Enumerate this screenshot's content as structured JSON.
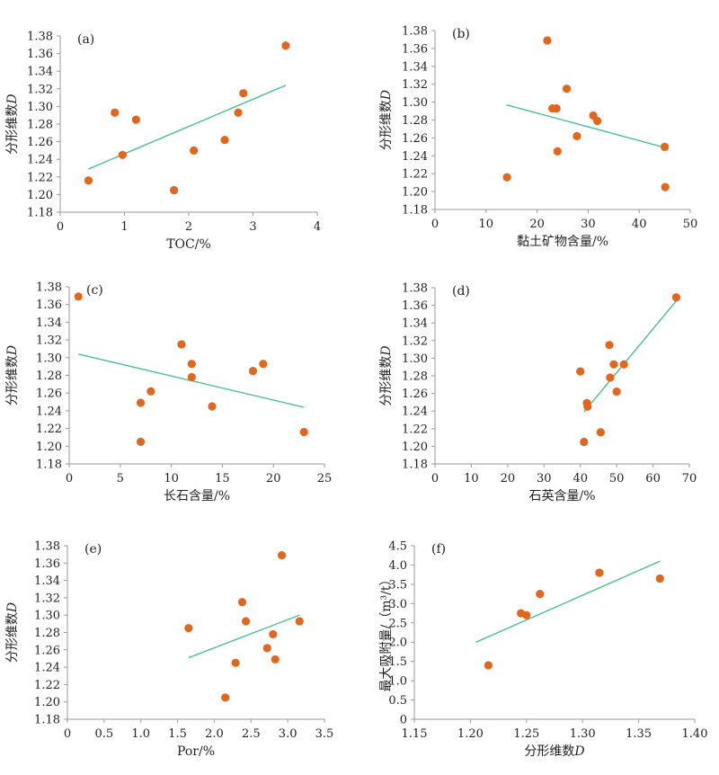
{
  "colors": {
    "point": "#E2661B",
    "trendline": "#3DBE8A",
    "axis": "#9A9A9A",
    "text": "#222222"
  },
  "chart_data": [
    {
      "type": "scatter",
      "panel": "(a)",
      "xlabel": "TOC/%",
      "ylabel": "分形维数D",
      "xlim": [
        0,
        4
      ],
      "ylim": [
        1.18,
        1.38
      ],
      "xticks": [
        "0",
        "1",
        "2",
        "3",
        "4"
      ],
      "yticks": [
        "1.18",
        "1.20",
        "1.22",
        "1.24",
        "1.26",
        "1.28",
        "1.30",
        "1.32",
        "1.34",
        "1.36",
        "1.38"
      ],
      "x": [
        0.44,
        0.85,
        0.97,
        1.18,
        1.77,
        2.08,
        2.56,
        2.77,
        2.85,
        3.51
      ],
      "y": [
        1.216,
        1.293,
        1.245,
        1.285,
        1.205,
        1.25,
        1.262,
        1.293,
        1.315,
        1.369
      ],
      "trendline": {
        "x": [
          0.44,
          3.51
        ],
        "y": [
          1.229,
          1.324
        ]
      }
    },
    {
      "type": "scatter",
      "panel": "(b)",
      "xlabel": "黏土矿物含量/%",
      "ylabel": "分形维数D",
      "xlim": [
        0,
        50
      ],
      "ylim": [
        1.18,
        1.38
      ],
      "xticks": [
        "0",
        "10",
        "20",
        "30",
        "40",
        "50"
      ],
      "yticks": [
        "1.18",
        "1.20",
        "1.22",
        "1.24",
        "1.26",
        "1.28",
        "1.30",
        "1.32",
        "1.34",
        "1.36",
        "1.38"
      ],
      "x": [
        14.1,
        22.0,
        23.0,
        23.8,
        24.0,
        25.8,
        27.8,
        31.0,
        31.8,
        45.0,
        45.1
      ],
      "y": [
        1.216,
        1.369,
        1.293,
        1.293,
        1.245,
        1.315,
        1.262,
        1.285,
        1.279,
        1.25,
        1.205
      ],
      "trendline": {
        "x": [
          14,
          45.2
        ],
        "y": [
          1.297,
          1.249
        ]
      }
    },
    {
      "type": "scatter",
      "panel": "(c)",
      "xlabel": "长石含量/%",
      "ylabel": "分形维数D",
      "xlim": [
        0,
        25
      ],
      "ylim": [
        1.18,
        1.38
      ],
      "xticks": [
        "0",
        "5",
        "10",
        "15",
        "20",
        "25"
      ],
      "yticks": [
        "1.18",
        "1.20",
        "1.22",
        "1.24",
        "1.26",
        "1.28",
        "1.30",
        "1.32",
        "1.34",
        "1.36",
        "1.38"
      ],
      "x": [
        0.9,
        7.0,
        7.0,
        8.0,
        11.0,
        12.0,
        12.0,
        14.0,
        18.0,
        19.0,
        23.0
      ],
      "y": [
        1.369,
        1.249,
        1.205,
        1.262,
        1.315,
        1.293,
        1.278,
        1.245,
        1.285,
        1.293,
        1.216
      ],
      "trendline": {
        "x": [
          0.9,
          23.0
        ],
        "y": [
          1.304,
          1.244
        ]
      }
    },
    {
      "type": "scatter",
      "panel": "(d)",
      "xlabel": "石英含量/%",
      "ylabel": "分形维数D",
      "xlim": [
        0,
        70
      ],
      "ylim": [
        1.18,
        1.38
      ],
      "xticks": [
        "0",
        "10",
        "20",
        "30",
        "40",
        "50",
        "60",
        "70"
      ],
      "yticks": [
        "1.18",
        "1.20",
        "1.22",
        "1.24",
        "1.26",
        "1.28",
        "1.30",
        "1.32",
        "1.34",
        "1.36",
        "1.38"
      ],
      "x": [
        40.0,
        41.0,
        41.8,
        42.0,
        45.6,
        48.0,
        48.2,
        49.2,
        50.0,
        52.0,
        66.4
      ],
      "y": [
        1.285,
        1.205,
        1.249,
        1.245,
        1.216,
        1.315,
        1.278,
        1.293,
        1.262,
        1.293,
        1.369
      ],
      "trendline": {
        "x": [
          41.0,
          66.4
        ],
        "y": [
          1.239,
          1.365
        ]
      }
    },
    {
      "type": "scatter",
      "panel": "(e)",
      "xlabel": "Por/%",
      "ylabel": "分形维数D",
      "xlim": [
        0,
        3.5
      ],
      "ylim": [
        1.18,
        1.38
      ],
      "xticks": [
        "0",
        "0.5",
        "1.0",
        "1.5",
        "2.0",
        "2.5",
        "3.0",
        "3.5"
      ],
      "yticks": [
        "1.18",
        "1.20",
        "1.22",
        "1.24",
        "1.26",
        "1.28",
        "1.30",
        "1.32",
        "1.34",
        "1.36",
        "1.38"
      ],
      "x": [
        1.65,
        2.15,
        2.29,
        2.38,
        2.43,
        2.72,
        2.8,
        2.83,
        2.92,
        3.16
      ],
      "y": [
        1.285,
        1.205,
        1.245,
        1.315,
        1.293,
        1.262,
        1.278,
        1.249,
        1.369,
        1.293
      ],
      "trendline": {
        "x": [
          1.65,
          3.16
        ],
        "y": [
          1.251,
          1.3
        ]
      }
    },
    {
      "type": "scatter",
      "panel": "(f)",
      "xlabel": "分形维数D",
      "ylabel": "最大吸附量/（m³/t）",
      "xlim": [
        1.15,
        1.4
      ],
      "ylim": [
        0,
        4.5
      ],
      "xticks": [
        "1.15",
        "1.20",
        "1.25",
        "1.30",
        "1.35",
        "1.40"
      ],
      "yticks": [
        "0",
        "0.5",
        "1.0",
        "1.5",
        "2.0",
        "2.5",
        "3.0",
        "3.5",
        "4.0",
        "4.5"
      ],
      "x": [
        1.216,
        1.245,
        1.25,
        1.262,
        1.315,
        1.369
      ],
      "y": [
        1.4,
        2.75,
        2.7,
        3.25,
        3.8,
        3.65
      ],
      "trendline": {
        "x": [
          1.205,
          1.369
        ],
        "y": [
          2.0,
          4.1
        ]
      }
    }
  ]
}
